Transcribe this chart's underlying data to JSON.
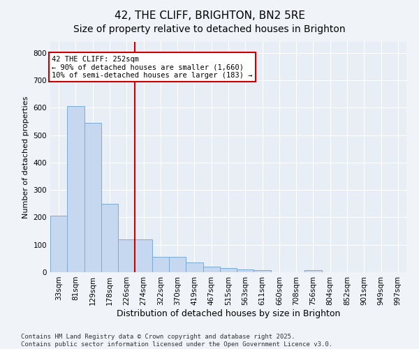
{
  "title": "42, THE CLIFF, BRIGHTON, BN2 5RE",
  "subtitle": "Size of property relative to detached houses in Brighton",
  "xlabel": "Distribution of detached houses by size in Brighton",
  "ylabel": "Number of detached properties",
  "categories": [
    "33sqm",
    "81sqm",
    "129sqm",
    "178sqm",
    "226sqm",
    "274sqm",
    "322sqm",
    "370sqm",
    "419sqm",
    "467sqm",
    "515sqm",
    "563sqm",
    "611sqm",
    "660sqm",
    "708sqm",
    "756sqm",
    "804sqm",
    "852sqm",
    "901sqm",
    "949sqm",
    "997sqm"
  ],
  "values": [
    205,
    605,
    545,
    250,
    120,
    120,
    57,
    57,
    35,
    20,
    15,
    10,
    7,
    0,
    0,
    7,
    0,
    0,
    0,
    0,
    0
  ],
  "bar_color": "#c5d8ef",
  "bar_edge_color": "#7aaad4",
  "vline_x": 4.5,
  "vline_color": "#cc0000",
  "annotation_text": "42 THE CLIFF: 252sqm\n← 90% of detached houses are smaller (1,660)\n10% of semi-detached houses are larger (183) →",
  "annotation_box_facecolor": "white",
  "annotation_box_edgecolor": "#cc0000",
  "annotation_text_fontsize": 7.5,
  "background_color": "#f0f4f8",
  "plot_bg_color": "#e8eef5",
  "grid_color": "white",
  "footer": "Contains HM Land Registry data © Crown copyright and database right 2025.\nContains public sector information licensed under the Open Government Licence v3.0.",
  "ylim": [
    0,
    840
  ],
  "yticks": [
    0,
    100,
    200,
    300,
    400,
    500,
    600,
    700,
    800
  ],
  "title_fontsize": 11,
  "subtitle_fontsize": 10,
  "xlabel_fontsize": 9,
  "ylabel_fontsize": 8,
  "tick_fontsize": 7.5,
  "footer_fontsize": 6.5
}
